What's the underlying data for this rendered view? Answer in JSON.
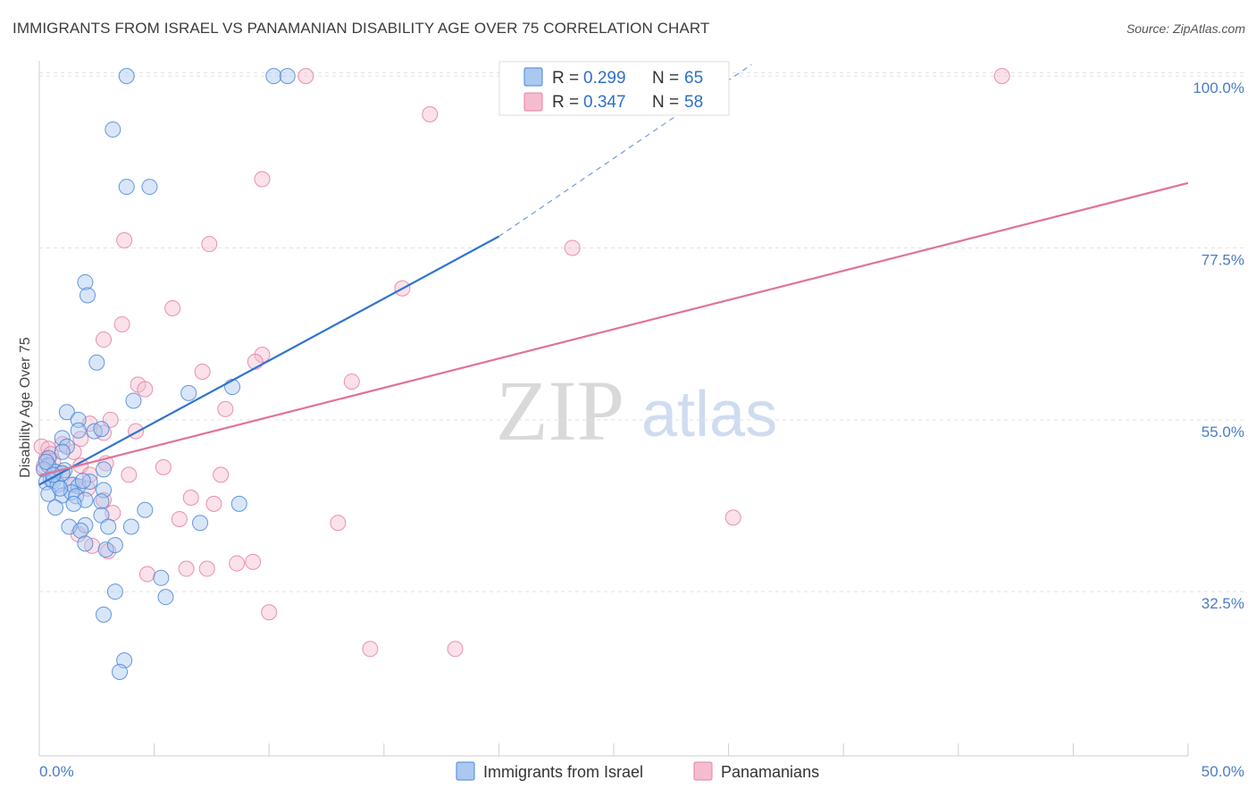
{
  "header": {
    "title": "IMMIGRANTS FROM ISRAEL VS PANAMANIAN DISABILITY AGE OVER 75 CORRELATION CHART",
    "source": "Source: ZipAtlas.com"
  },
  "watermark": {
    "zip": "ZIP",
    "atlas": "atlas"
  },
  "colors": {
    "blue": "#4a86d8",
    "blue_fill": "#aac8f0",
    "blue_line": "#2f74cf",
    "pink": "#e57fa3",
    "pink_fill": "#f5bcd0",
    "pink_line": "#e0729a",
    "tick": "#4a7cc7",
    "grid": "#e2e2e2"
  },
  "legend": {
    "rows": [
      {
        "r_label": "R =",
        "r_value": "0.299",
        "n_label": "N =",
        "n_value": "65"
      },
      {
        "r_label": "R =",
        "r_value": "0.347",
        "n_label": "N =",
        "n_value": "58"
      }
    ]
  },
  "chart_data": {
    "type": "scatter",
    "title": "IMMIGRANTS FROM ISRAEL VS PANAMANIAN DISABILITY AGE OVER 75 CORRELATION CHART",
    "xlabel": "",
    "ylabel": "Disability Age Over 75",
    "xlim": [
      0,
      50
    ],
    "ylim": [
      11,
      102
    ],
    "x_tick_labels": [
      "0.0%",
      "50.0%"
    ],
    "y_ticks": [
      32.5,
      55.0,
      77.5,
      100.0
    ],
    "y_tick_labels": [
      "32.5%",
      "55.0%",
      "77.5%",
      "100.0%"
    ],
    "grid": true,
    "legend_position": "top-center",
    "series": [
      {
        "name": "Immigrants from Israel",
        "color": "blue",
        "R": 0.299,
        "N": 65,
        "trend": {
          "x0": 0,
          "y0": 46.5,
          "x1": 20,
          "y1": 79.0,
          "dash_to_x": 31,
          "dash_to_y": 101.5
        },
        "points": [
          [
            3.8,
            100
          ],
          [
            10.2,
            100
          ],
          [
            10.8,
            100
          ],
          [
            3.2,
            93
          ],
          [
            3.8,
            85.5
          ],
          [
            4.8,
            85.5
          ],
          [
            2.0,
            73
          ],
          [
            2.1,
            71.3
          ],
          [
            2.5,
            62.5
          ],
          [
            4.1,
            57.5
          ],
          [
            6.5,
            58.5
          ],
          [
            8.4,
            59.3
          ],
          [
            1.2,
            56
          ],
          [
            1.7,
            55
          ],
          [
            1.7,
            53.6
          ],
          [
            2.4,
            53.5
          ],
          [
            2.7,
            53.8
          ],
          [
            1.0,
            52.6
          ],
          [
            1.2,
            51.5
          ],
          [
            1.0,
            50.8
          ],
          [
            0.4,
            50.0
          ],
          [
            0.4,
            49.0
          ],
          [
            0.2,
            48.5
          ],
          [
            0.7,
            48.2
          ],
          [
            1.1,
            48.4
          ],
          [
            2.8,
            48.5
          ],
          [
            0.5,
            47.2
          ],
          [
            0.3,
            46.8
          ],
          [
            0.6,
            47.0
          ],
          [
            0.8,
            46.5
          ],
          [
            1.4,
            46.5
          ],
          [
            1.7,
            46.3
          ],
          [
            2.2,
            46.9
          ],
          [
            0.4,
            45.3
          ],
          [
            1.0,
            45.1
          ],
          [
            1.4,
            45.5
          ],
          [
            1.6,
            45.0
          ],
          [
            2.8,
            45.8
          ],
          [
            2.0,
            44.5
          ],
          [
            1.5,
            44.0
          ],
          [
            2.7,
            44.3
          ],
          [
            0.7,
            43.5
          ],
          [
            4.6,
            43.2
          ],
          [
            8.7,
            44.0
          ],
          [
            1.3,
            41.0
          ],
          [
            2.7,
            42.5
          ],
          [
            3.0,
            41.0
          ],
          [
            4.0,
            41.0
          ],
          [
            2.0,
            41.2
          ],
          [
            1.8,
            40.5
          ],
          [
            2.0,
            38.8
          ],
          [
            2.9,
            38.0
          ],
          [
            3.3,
            38.6
          ],
          [
            7.0,
            41.5
          ],
          [
            5.3,
            34.3
          ],
          [
            5.5,
            31.8
          ],
          [
            3.3,
            32.5
          ],
          [
            2.8,
            29.5
          ],
          [
            3.7,
            23.5
          ],
          [
            3.5,
            22.0
          ],
          [
            1.0,
            48.0
          ],
          [
            0.6,
            47.8
          ],
          [
            0.3,
            49.5
          ],
          [
            1.9,
            47.0
          ],
          [
            0.9,
            46.0
          ]
        ]
      },
      {
        "name": "Panamanians",
        "color": "pink",
        "R": 0.347,
        "N": 58,
        "trend": {
          "x0": 0,
          "y0": 47.7,
          "x1": 50,
          "y1": 86.0
        },
        "points": [
          [
            11.6,
            100
          ],
          [
            41.9,
            100
          ],
          [
            17.0,
            95
          ],
          [
            9.7,
            86.5
          ],
          [
            3.7,
            78.5
          ],
          [
            7.4,
            78
          ],
          [
            23.2,
            77.5
          ],
          [
            15.8,
            72.2
          ],
          [
            5.8,
            69.6
          ],
          [
            3.6,
            67.5
          ],
          [
            2.8,
            65.5
          ],
          [
            9.7,
            63.5
          ],
          [
            9.4,
            62.6
          ],
          [
            7.1,
            61.3
          ],
          [
            13.6,
            60.0
          ],
          [
            4.3,
            59.6
          ],
          [
            4.6,
            59.0
          ],
          [
            8.1,
            56.4
          ],
          [
            3.1,
            55.0
          ],
          [
            2.2,
            54.5
          ],
          [
            2.8,
            53.3
          ],
          [
            4.2,
            53.5
          ],
          [
            1.8,
            52.5
          ],
          [
            1.0,
            51.8
          ],
          [
            0.1,
            51.5
          ],
          [
            0.4,
            51.2
          ],
          [
            0.5,
            50.5
          ],
          [
            1.5,
            50.8
          ],
          [
            0.3,
            49.8
          ],
          [
            0.6,
            49.6
          ],
          [
            1.8,
            49.0
          ],
          [
            2.9,
            49.3
          ],
          [
            5.4,
            48.8
          ],
          [
            1.0,
            48.0
          ],
          [
            2.2,
            47.8
          ],
          [
            3.9,
            47.8
          ],
          [
            7.9,
            47.8
          ],
          [
            1.5,
            46.5
          ],
          [
            2.1,
            46.0
          ],
          [
            2.8,
            44.5
          ],
          [
            6.6,
            44.8
          ],
          [
            7.6,
            44.0
          ],
          [
            3.2,
            42.8
          ],
          [
            6.1,
            42.0
          ],
          [
            13.0,
            41.5
          ],
          [
            30.2,
            42.2
          ],
          [
            1.7,
            40.0
          ],
          [
            2.3,
            38.5
          ],
          [
            3.0,
            37.8
          ],
          [
            4.7,
            34.8
          ],
          [
            6.4,
            35.5
          ],
          [
            7.3,
            35.5
          ],
          [
            8.6,
            36.2
          ],
          [
            9.3,
            36.4
          ],
          [
            10.0,
            29.8
          ],
          [
            14.4,
            25.0
          ],
          [
            18.1,
            25.0
          ],
          [
            0.2,
            48.9
          ]
        ]
      }
    ]
  },
  "bottom_legend": {
    "items": [
      {
        "label": "Immigrants from Israel"
      },
      {
        "label": "Panamanians"
      }
    ]
  }
}
